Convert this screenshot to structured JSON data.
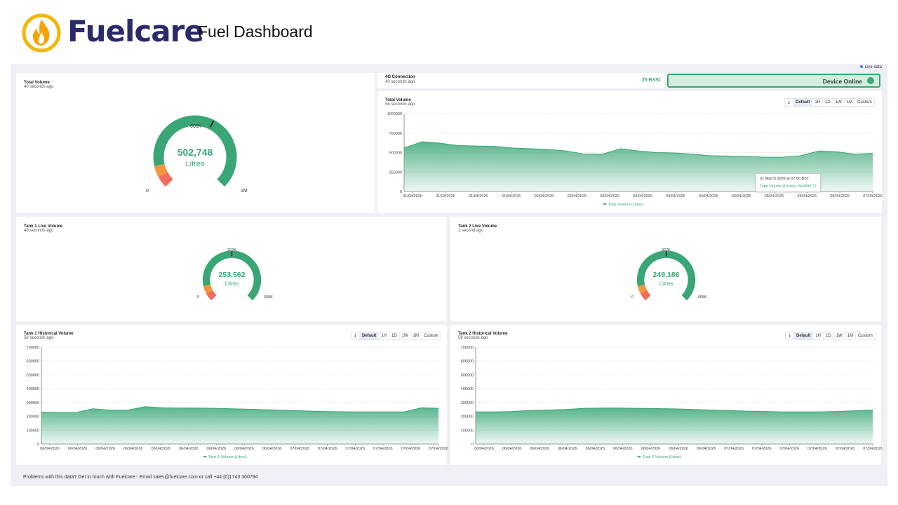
{
  "header": {
    "brand": "Fuelcare",
    "title": "Fuel Dashboard",
    "brand_color": "#2b2a6b",
    "logo_ring_color": "#f2b705",
    "logo_flame_color": "#f5a300"
  },
  "live_indicator": {
    "label": "Live data",
    "color": "#3b82f6"
  },
  "total_volume_gauge": {
    "title": "Total Volume",
    "updated": "40 seconds ago",
    "value": "502,748",
    "unit": "Litres",
    "min_label": "0",
    "max_label": "1M",
    "marker_label": "600K",
    "level": 0.502748,
    "marker": 0.6
  },
  "connection": {
    "title": "4G Connection",
    "updated": "40 seconds ago",
    "rssi": "25 RSSI",
    "status": "Device Online",
    "status_color": "#3aa676"
  },
  "toolbar": {
    "download_icon": "download-icon",
    "ranges": [
      "Default",
      "1H",
      "1D",
      "1W",
      "1M",
      "Custom"
    ],
    "active": "Default"
  },
  "total_volume_chart": {
    "title": "Total Volume",
    "updated": "58 seconds ago",
    "tooltip": {
      "title": "31 March 2026 at 07:00 BST",
      "value": "Total Volume (Litres) : 564805.72"
    },
    "chart_data": {
      "type": "area",
      "x_labels": [
        "31/03/2026",
        "31/03/2026",
        "01/04/2026",
        "01/04/2026",
        "02/04/2026",
        "02/04/2026",
        "03/04/2026",
        "03/04/2026",
        "04/04/2026",
        "04/04/2026",
        "05/04/2026",
        "05/04/2026",
        "06/04/2026",
        "06/04/2026",
        "07/04/2026"
      ],
      "y_ticks": [
        "0",
        "250000",
        "500000",
        "750000",
        "1000000"
      ],
      "ylim": [
        0,
        1000000
      ],
      "series": [
        {
          "name": "Total Volume (Litres)",
          "values": [
            560000,
            640000,
            620000,
            590000,
            585000,
            580000,
            560000,
            550000,
            540000,
            520000,
            480000,
            480000,
            550000,
            520000,
            500000,
            495000,
            480000,
            460000,
            455000,
            450000,
            440000,
            440000,
            460000,
            520000,
            510000,
            480000,
            490000
          ]
        }
      ],
      "color": "#3aa676"
    }
  },
  "tank1_gauge": {
    "title": "Tank 1 Live Volume",
    "updated": "40 seconds ago",
    "value": "253,562",
    "unit": "Litres",
    "min_label": "0",
    "max_label": "655K",
    "marker_label": "327K",
    "level": 0.3871,
    "marker": 0.5
  },
  "tank2_gauge": {
    "title": "Tank 2 Live Volume",
    "updated": "1 second ago",
    "value": "249,186",
    "unit": "Litres",
    "min_label": "0",
    "max_label": "655K",
    "marker_label": "327K",
    "level": 0.3804,
    "marker": 0.5
  },
  "tank1_chart": {
    "title": "Tank 1 Historical Volume",
    "updated": "58 seconds ago",
    "chart_data": {
      "type": "area",
      "x_labels": [
        "06/04/2026",
        "06/04/2026",
        "06/04/2026",
        "06/04/2026",
        "06/04/2026",
        "06/04/2026",
        "06/04/2026",
        "06/04/2026",
        "06/04/2026",
        "07/04/2026",
        "07/04/2026",
        "07/04/2026",
        "07/04/2026",
        "07/04/2026",
        "07/04/2026"
      ],
      "y_ticks": [
        "0",
        "100000",
        "200000",
        "300000",
        "400000",
        "500000",
        "600000",
        "700000"
      ],
      "ylim": [
        0,
        700000
      ],
      "series": [
        {
          "name": "Tank 1 Volume (Litres)",
          "values": [
            230000,
            228000,
            228000,
            255000,
            245000,
            245000,
            270000,
            262000,
            260000,
            260000,
            258000,
            255000,
            252000,
            248000,
            244000,
            240000,
            236000,
            234000,
            232000,
            232000,
            232000,
            232000,
            262000,
            258000
          ]
        }
      ],
      "color": "#3aa676"
    }
  },
  "tank2_chart": {
    "title": "Tank 2 Historical Volume",
    "updated": "58 seconds ago",
    "chart_data": {
      "type": "area",
      "x_labels": [
        "06/04/2026",
        "06/04/2026",
        "06/04/2026",
        "06/04/2026",
        "06/04/2026",
        "06/04/2026",
        "06/04/2026",
        "06/04/2026",
        "06/04/2026",
        "07/04/2026",
        "07/04/2026",
        "07/04/2026",
        "07/04/2026",
        "07/04/2026",
        "07/04/2026"
      ],
      "y_ticks": [
        "0",
        "100000",
        "200000",
        "300000",
        "400000",
        "500000",
        "600000",
        "700000"
      ],
      "ylim": [
        0,
        700000
      ],
      "series": [
        {
          "name": "Tank 2 Volume (Litres)",
          "values": [
            232000,
            232000,
            235000,
            242000,
            246000,
            250000,
            258000,
            260000,
            260000,
            258000,
            256000,
            254000,
            250000,
            246000,
            242000,
            238000,
            235000,
            232000,
            232000,
            232000,
            235000,
            240000,
            246000
          ]
        }
      ],
      "color": "#3aa676"
    }
  },
  "footer": {
    "text": "Problems with this data? Get in touch with Fuelcare - Email sales@fuelcare.com or call +44 (0)1743 360784"
  }
}
